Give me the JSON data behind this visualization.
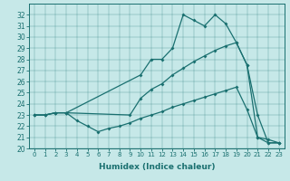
{
  "xlabel": "Humidex (Indice chaleur)",
  "xlim": [
    -0.5,
    23.5
  ],
  "ylim": [
    20,
    33
  ],
  "yticks": [
    20,
    21,
    22,
    23,
    24,
    25,
    26,
    27,
    28,
    29,
    30,
    31,
    32
  ],
  "xticks": [
    0,
    1,
    2,
    3,
    4,
    5,
    6,
    7,
    8,
    9,
    10,
    11,
    12,
    13,
    14,
    15,
    16,
    17,
    18,
    19,
    20,
    21,
    22,
    23
  ],
  "bg_color": "#c6e8e8",
  "line_color": "#1a7070",
  "line1_x": [
    0,
    1,
    2,
    3,
    10,
    11,
    12,
    13,
    14,
    15,
    16,
    17,
    18,
    19,
    20,
    21,
    22,
    23
  ],
  "line1_y": [
    23.0,
    23.0,
    23.2,
    23.2,
    26.6,
    28.0,
    28.0,
    29.0,
    32.0,
    31.5,
    31.0,
    32.0,
    31.2,
    29.5,
    27.5,
    23.0,
    20.5,
    20.5
  ],
  "line2_x": [
    0,
    1,
    2,
    3,
    9,
    10,
    11,
    12,
    13,
    14,
    15,
    16,
    17,
    18,
    19,
    20,
    21,
    22,
    23
  ],
  "line2_y": [
    23.0,
    23.0,
    23.2,
    23.2,
    23.0,
    24.5,
    25.3,
    25.8,
    26.6,
    27.2,
    27.8,
    28.3,
    28.8,
    29.2,
    29.5,
    27.5,
    21.0,
    20.5,
    20.5
  ],
  "line3_x": [
    0,
    1,
    2,
    3,
    4,
    5,
    6,
    7,
    8,
    9,
    10,
    11,
    12,
    13,
    14,
    15,
    16,
    17,
    18,
    19,
    20,
    21,
    22,
    23
  ],
  "line3_y": [
    23.0,
    23.0,
    23.2,
    23.2,
    22.5,
    22.0,
    21.5,
    21.8,
    22.0,
    22.3,
    22.7,
    23.0,
    23.3,
    23.7,
    24.0,
    24.3,
    24.6,
    24.9,
    25.2,
    25.5,
    23.5,
    21.0,
    20.8,
    20.5
  ]
}
